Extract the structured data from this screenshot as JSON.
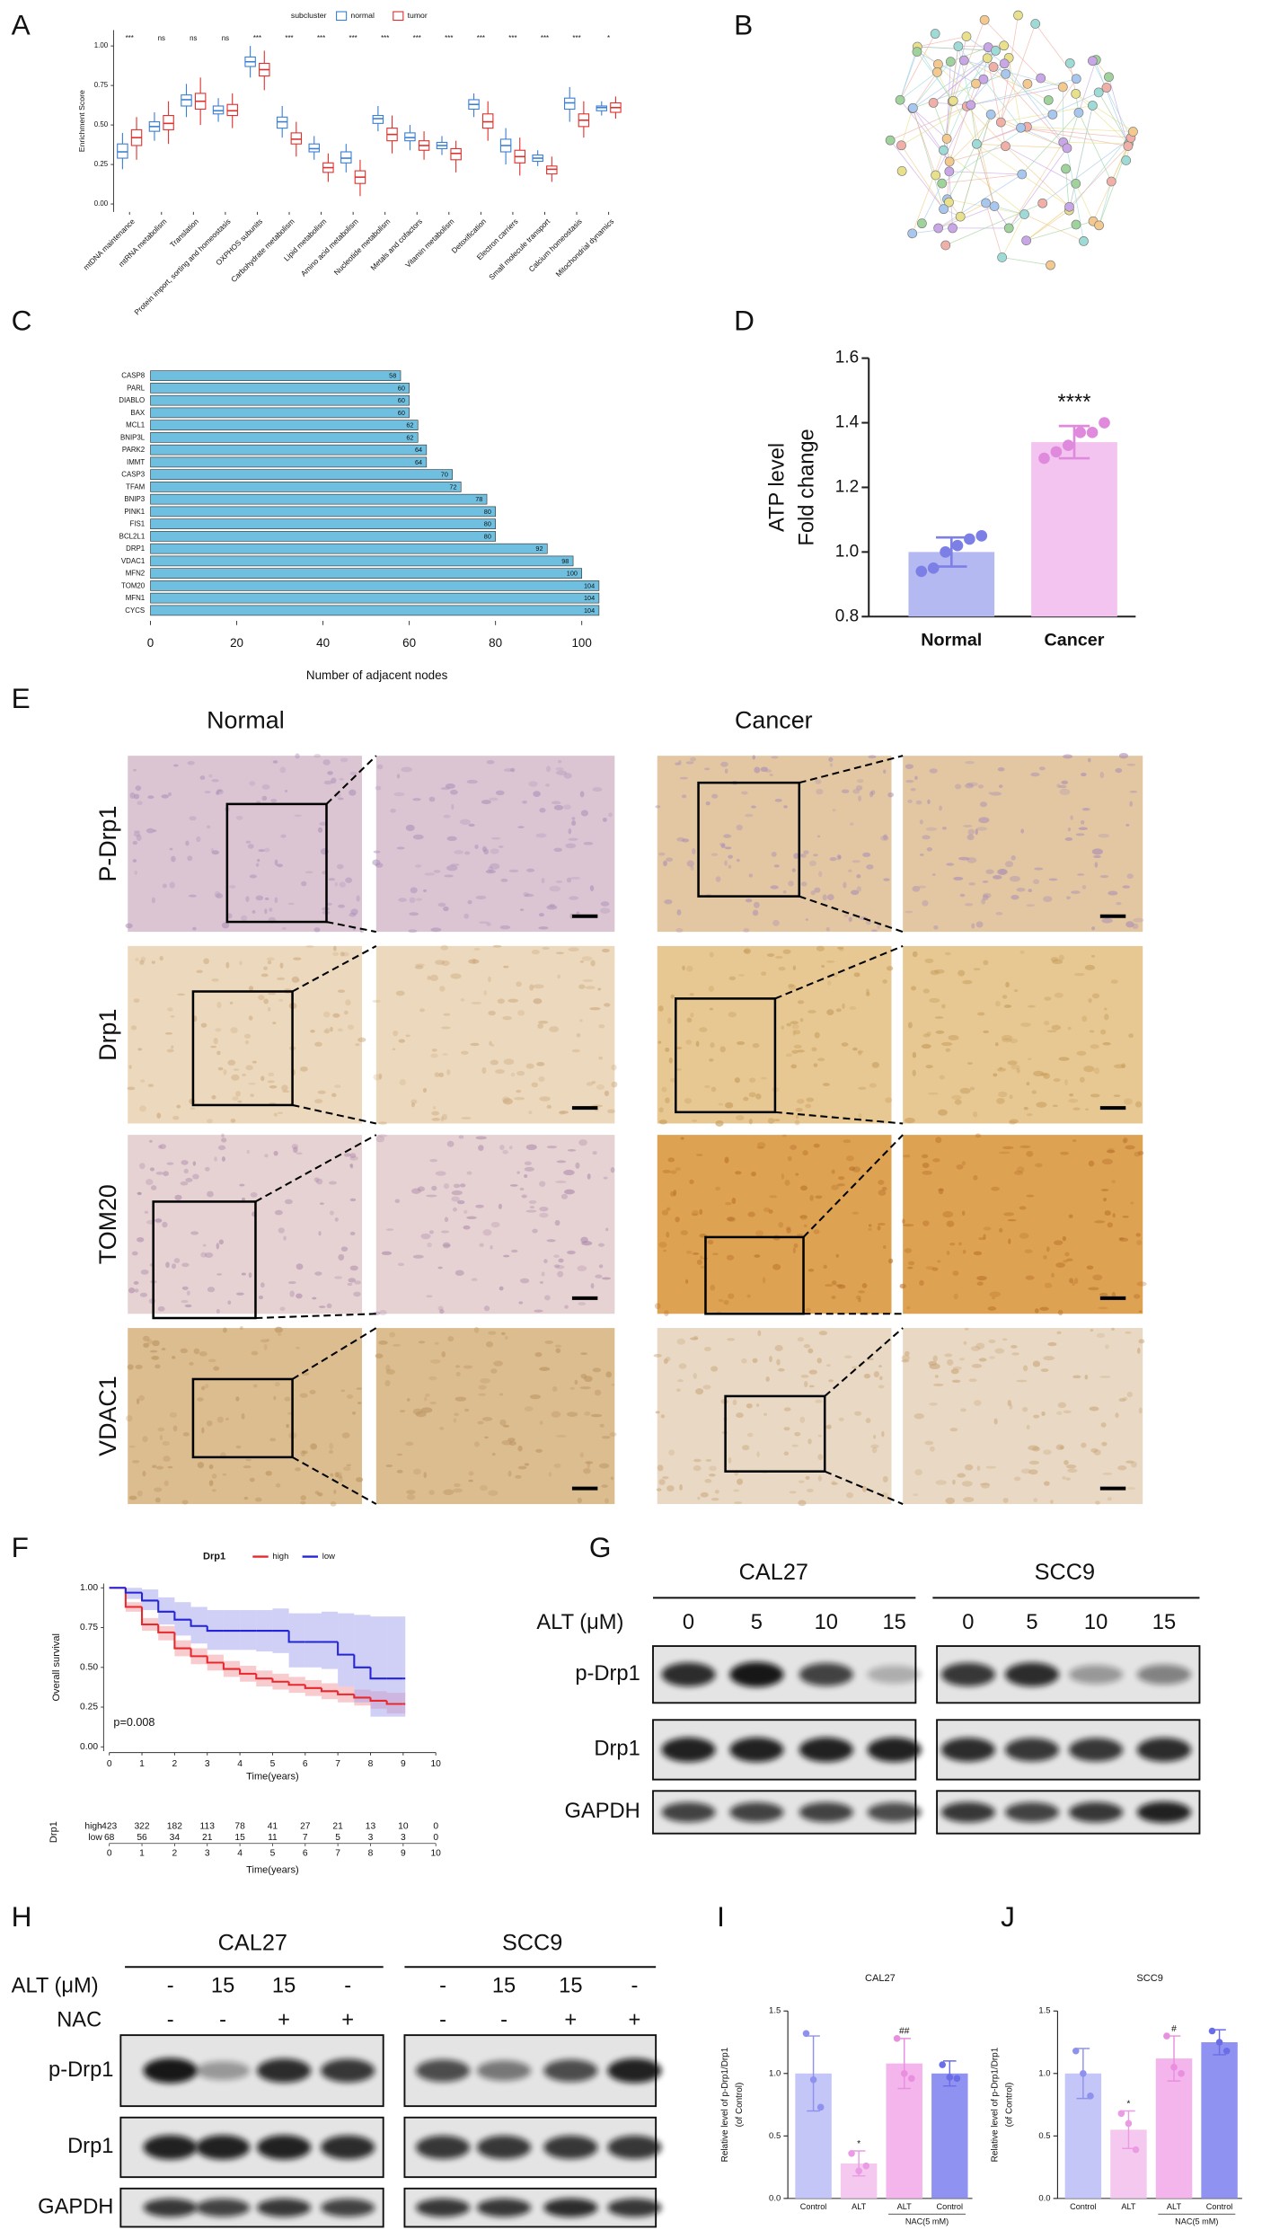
{
  "panels": [
    "A",
    "B",
    "C",
    "D",
    "E",
    "F",
    "G",
    "H",
    "I",
    "J"
  ],
  "ihc": {
    "columns": [
      "Normal",
      "Cancer"
    ],
    "rows": [
      "P-Drp1",
      "Drp1",
      "TOM20",
      "VDAC1"
    ]
  },
  "blot_g": {
    "groups": [
      "CAL27",
      "SCC9"
    ],
    "treatment": "ALT (μM)",
    "doses": [
      "0",
      "5",
      "10",
      "15",
      "0",
      "5",
      "10",
      "15"
    ],
    "rows": [
      "p-Drp1",
      "Drp1",
      "GAPDH"
    ]
  },
  "blot_h": {
    "groups": [
      "CAL27",
      "SCC9"
    ],
    "treatments": [
      "ALT (μM)",
      "NAC"
    ],
    "alt": [
      "-",
      "15",
      "15",
      "-",
      "-",
      "15",
      "15",
      "-"
    ],
    "nac": [
      "-",
      "-",
      "+",
      "+",
      "-",
      "-",
      "+",
      "+"
    ],
    "rows": [
      "p-Drp1",
      "Drp1",
      "GAPDH"
    ]
  },
  "chart_data": [
    {
      "type": "box",
      "legend_title": "subcluster",
      "ylabel": "Enrichment Score",
      "categories": [
        "mtDNA maintenance",
        "mtRNA metabolism",
        "Translation",
        "Protein import, sorting and homeostasis",
        "OXPHOS subunits",
        "Carbohydrate metabolism",
        "Lipid metabolism",
        "Amino acid metabolism",
        "Nucleotide metabolism",
        "Metals and cofactors",
        "Vitamin metabolism",
        "Detoxification",
        "Electron carriers",
        "Small molecule transport",
        "Calcium homeostasis",
        "Mitochondrial dynamics"
      ],
      "annotations": [
        "***",
        "ns",
        "ns",
        "ns",
        "***",
        "***",
        "***",
        "***",
        "***",
        "***",
        "***",
        "***",
        "***",
        "***",
        "***",
        "*"
      ],
      "ylim": [
        -0.05,
        1.1
      ],
      "yticks": [
        {
          "value": 0,
          "label": "0.00"
        },
        {
          "value": 0.25,
          "label": "0.25"
        },
        {
          "value": 0.5,
          "label": "0.50"
        },
        {
          "value": 0.75,
          "label": "0.75"
        },
        {
          "value": 1,
          "label": "1.00"
        }
      ],
      "series": [
        {
          "name": "normal",
          "color": "#3a7fd5",
          "min": [
            0.22,
            0.4,
            0.55,
            0.52,
            0.8,
            0.42,
            0.28,
            0.2,
            0.46,
            0.34,
            0.31,
            0.55,
            0.25,
            0.24,
            0.52,
            0.56
          ],
          "q1": [
            0.29,
            0.46,
            0.62,
            0.57,
            0.87,
            0.48,
            0.33,
            0.26,
            0.51,
            0.4,
            0.35,
            0.6,
            0.33,
            0.27,
            0.6,
            0.59
          ],
          "median": [
            0.33,
            0.49,
            0.66,
            0.59,
            0.9,
            0.52,
            0.35,
            0.29,
            0.54,
            0.42,
            0.37,
            0.63,
            0.37,
            0.29,
            0.64,
            0.61
          ],
          "q3": [
            0.38,
            0.52,
            0.69,
            0.62,
            0.93,
            0.55,
            0.38,
            0.33,
            0.56,
            0.45,
            0.39,
            0.66,
            0.41,
            0.31,
            0.67,
            0.62
          ],
          "max": [
            0.45,
            0.58,
            0.76,
            0.67,
            1.0,
            0.62,
            0.43,
            0.38,
            0.62,
            0.5,
            0.43,
            0.7,
            0.48,
            0.34,
            0.74,
            0.65
          ]
        },
        {
          "name": "tumor",
          "color": "#e0302d",
          "min": [
            0.28,
            0.38,
            0.5,
            0.48,
            0.72,
            0.3,
            0.14,
            0.05,
            0.32,
            0.28,
            0.2,
            0.4,
            0.18,
            0.14,
            0.42,
            0.54
          ],
          "q1": [
            0.37,
            0.47,
            0.6,
            0.56,
            0.81,
            0.38,
            0.2,
            0.13,
            0.4,
            0.34,
            0.28,
            0.48,
            0.26,
            0.19,
            0.49,
            0.58
          ],
          "median": [
            0.42,
            0.51,
            0.65,
            0.59,
            0.85,
            0.41,
            0.23,
            0.17,
            0.44,
            0.37,
            0.32,
            0.52,
            0.3,
            0.22,
            0.53,
            0.61
          ],
          "q3": [
            0.47,
            0.56,
            0.7,
            0.63,
            0.89,
            0.45,
            0.26,
            0.21,
            0.48,
            0.4,
            0.35,
            0.57,
            0.34,
            0.24,
            0.57,
            0.64
          ],
          "max": [
            0.55,
            0.65,
            0.8,
            0.7,
            0.97,
            0.52,
            0.32,
            0.28,
            0.56,
            0.46,
            0.4,
            0.65,
            0.42,
            0.3,
            0.65,
            0.68
          ]
        }
      ]
    },
    {
      "type": "hbar",
      "xlabel": "Number of adjacent nodes",
      "color": "#6fc0e0",
      "categories": [
        "CASP8",
        "PARL",
        "DIABLO",
        "BAX",
        "MCL1",
        "BNIP3L",
        "PARK2",
        "IMMT",
        "CASP3",
        "TFAM",
        "BNIP3",
        "PINK1",
        "FIS1",
        "BCL2L1",
        "DRP1",
        "VDAC1",
        "MFN2",
        "TOM20",
        "MFN1",
        "CYCS"
      ],
      "values": [
        58,
        60,
        60,
        60,
        62,
        62,
        64,
        64,
        70,
        72,
        78,
        80,
        80,
        80,
        92,
        98,
        100,
        104,
        104,
        104
      ],
      "xlim": [
        0,
        105
      ],
      "xticks": [
        0,
        20,
        40,
        60,
        80,
        100
      ]
    },
    {
      "type": "bar",
      "ylabel": [
        "ATP level",
        "Fold change"
      ],
      "categories": [
        "Normal",
        "Cancer"
      ],
      "values": [
        1.0,
        1.34
      ],
      "errors": [
        0.045,
        0.05
      ],
      "points": [
        [
          0.94,
          0.95,
          1.0,
          1.02,
          1.04,
          1.05
        ],
        [
          1.29,
          1.31,
          1.33,
          1.37,
          1.37,
          1.4
        ]
      ],
      "colors": [
        "#b5b9f2",
        "#f2c4ef"
      ],
      "point_colors": [
        "#7c80e6",
        "#e08ade"
      ],
      "annotations": [
        null,
        "****"
      ],
      "ylim": [
        0.8,
        1.6
      ],
      "yticks": [
        {
          "value": 0.8,
          "label": "0.8"
        },
        {
          "value": 1.0,
          "label": "1.0"
        },
        {
          "value": 1.2,
          "label": "1.2"
        },
        {
          "value": 1.4,
          "label": "1.4"
        },
        {
          "value": 1.6,
          "label": "1.6"
        }
      ]
    },
    {
      "type": "line",
      "step": true,
      "legend_title": "Drp1",
      "ylabel": "Overall survival",
      "xlabel": "Time(years)",
      "annotation": "p=0.008",
      "x": [
        0,
        0.5,
        1,
        1.5,
        2,
        2.5,
        3,
        3.5,
        4,
        4.5,
        5,
        5.5,
        6,
        6.5,
        7,
        7.5,
        8,
        8.5,
        9
      ],
      "xlim": [
        0,
        10
      ],
      "xticks": [
        0,
        1,
        2,
        3,
        4,
        5,
        6,
        7,
        8,
        9,
        10
      ],
      "ylim": [
        0,
        1
      ],
      "yticks": [
        {
          "value": 0,
          "label": "0.00"
        },
        {
          "value": 0.25,
          "label": "0.25"
        },
        {
          "value": 0.5,
          "label": "0.50"
        },
        {
          "value": 0.75,
          "label": "0.75"
        },
        {
          "value": 1,
          "label": "1.00"
        }
      ],
      "series": [
        {
          "name": "high",
          "color": "#e8282b",
          "band_color": "#f3a0a8",
          "values": [
            1,
            0.88,
            0.77,
            0.72,
            0.62,
            0.57,
            0.53,
            0.49,
            0.46,
            0.43,
            0.41,
            0.39,
            0.37,
            0.35,
            0.33,
            0.31,
            0.29,
            0.27,
            0.27
          ],
          "ci_low": [
            1,
            0.85,
            0.73,
            0.67,
            0.57,
            0.52,
            0.48,
            0.44,
            0.41,
            0.38,
            0.36,
            0.34,
            0.32,
            0.3,
            0.28,
            0.26,
            0.24,
            0.21,
            0.21
          ],
          "ci_high": [
            1,
            0.91,
            0.81,
            0.76,
            0.67,
            0.62,
            0.58,
            0.54,
            0.51,
            0.48,
            0.46,
            0.44,
            0.42,
            0.4,
            0.38,
            0.36,
            0.35,
            0.34,
            0.34
          ]
        },
        {
          "name": "low",
          "color": "#2424d8",
          "band_color": "#a9a8ee",
          "values": [
            1,
            0.97,
            0.92,
            0.85,
            0.8,
            0.76,
            0.73,
            0.73,
            0.73,
            0.73,
            0.73,
            0.66,
            0.66,
            0.66,
            0.58,
            0.5,
            0.43,
            0.43,
            0.43
          ],
          "ci_low": [
            1,
            0.93,
            0.86,
            0.77,
            0.7,
            0.65,
            0.61,
            0.61,
            0.61,
            0.6,
            0.59,
            0.5,
            0.5,
            0.49,
            0.38,
            0.28,
            0.19,
            0.19,
            0.19
          ],
          "ci_high": [
            1,
            1,
            0.99,
            0.94,
            0.91,
            0.88,
            0.86,
            0.86,
            0.86,
            0.86,
            0.87,
            0.84,
            0.84,
            0.85,
            0.84,
            0.83,
            0.82,
            0.82,
            0.82
          ]
        }
      ]
    },
    {
      "type": "risk-table",
      "title": "Drp1",
      "xlabel": "Time(years)",
      "x": [
        0,
        1,
        2,
        3,
        4,
        5,
        6,
        7,
        8,
        9,
        10
      ],
      "xlim": [
        0,
        10
      ],
      "xticks": [
        0,
        1,
        2,
        3,
        4,
        5,
        6,
        7,
        8,
        9,
        10
      ],
      "series": [
        {
          "name": "high",
          "color": "#e8282b",
          "values": [
            423,
            322,
            182,
            113,
            78,
            41,
            27,
            21,
            13,
            10,
            0
          ]
        },
        {
          "name": "low",
          "color": "#2424d8",
          "values": [
            68,
            56,
            34,
            21,
            15,
            11,
            7,
            5,
            3,
            3,
            0
          ]
        }
      ]
    },
    {
      "type": "bar",
      "title": "CAL27",
      "ylabel": [
        "Relative level of p-Drp1/Drp1",
        "(of Control)"
      ],
      "categories": [
        "Control",
        "ALT",
        "ALT",
        "Control"
      ],
      "bracket_label": "NAC(5 mM)",
      "values": [
        1.0,
        0.28,
        1.08,
        1.0
      ],
      "errors": [
        0.3,
        0.1,
        0.2,
        0.1
      ],
      "points": [
        [
          1.32,
          0.95,
          0.73
        ],
        [
          0.36,
          0.22,
          0.26
        ],
        [
          1.28,
          1.0,
          0.96
        ],
        [
          1.07,
          0.97,
          0.96
        ]
      ],
      "colors": [
        "#c3c6f6",
        "#f5c8f0",
        "#f3b5eb",
        "#8f92f0"
      ],
      "point_colors": [
        "#8e92ee",
        "#ea9be3",
        "#e88fe0",
        "#6a6de6"
      ],
      "annotations": [
        null,
        "*",
        "##",
        null
      ],
      "ylim": [
        0,
        1.5
      ],
      "yticks": [
        {
          "value": 0,
          "label": "0.0"
        },
        {
          "value": 0.5,
          "label": "0.5"
        },
        {
          "value": 1,
          "label": "1.0"
        },
        {
          "value": 1.5,
          "label": "1.5"
        }
      ]
    },
    {
      "type": "bar",
      "title": "SCC9",
      "ylabel": [
        "Relative level of p-Drp1/Drp1",
        "(of Control)"
      ],
      "categories": [
        "Control",
        "ALT",
        "ALT",
        "Control"
      ],
      "bracket_label": "NAC(5 mM)",
      "values": [
        1.0,
        0.55,
        1.12,
        1.25
      ],
      "errors": [
        0.2,
        0.15,
        0.18,
        0.1
      ],
      "points": [
        [
          1.18,
          1.0,
          0.82
        ],
        [
          0.68,
          0.6,
          0.39
        ],
        [
          1.3,
          1.05,
          1.0
        ],
        [
          1.34,
          1.25,
          1.18
        ]
      ],
      "colors": [
        "#c3c6f6",
        "#f5c8f0",
        "#f3b5eb",
        "#8f92f0"
      ],
      "point_colors": [
        "#8e92ee",
        "#ea9be3",
        "#e88fe0",
        "#6a6de6"
      ],
      "annotations": [
        null,
        "*",
        "#",
        null
      ],
      "ylim": [
        0,
        1.5
      ],
      "yticks": [
        {
          "value": 0,
          "label": "0.0"
        },
        {
          "value": 0.5,
          "label": "0.5"
        },
        {
          "value": 1,
          "label": "1.0"
        },
        {
          "value": 1.5,
          "label": "1.5"
        }
      ]
    }
  ]
}
